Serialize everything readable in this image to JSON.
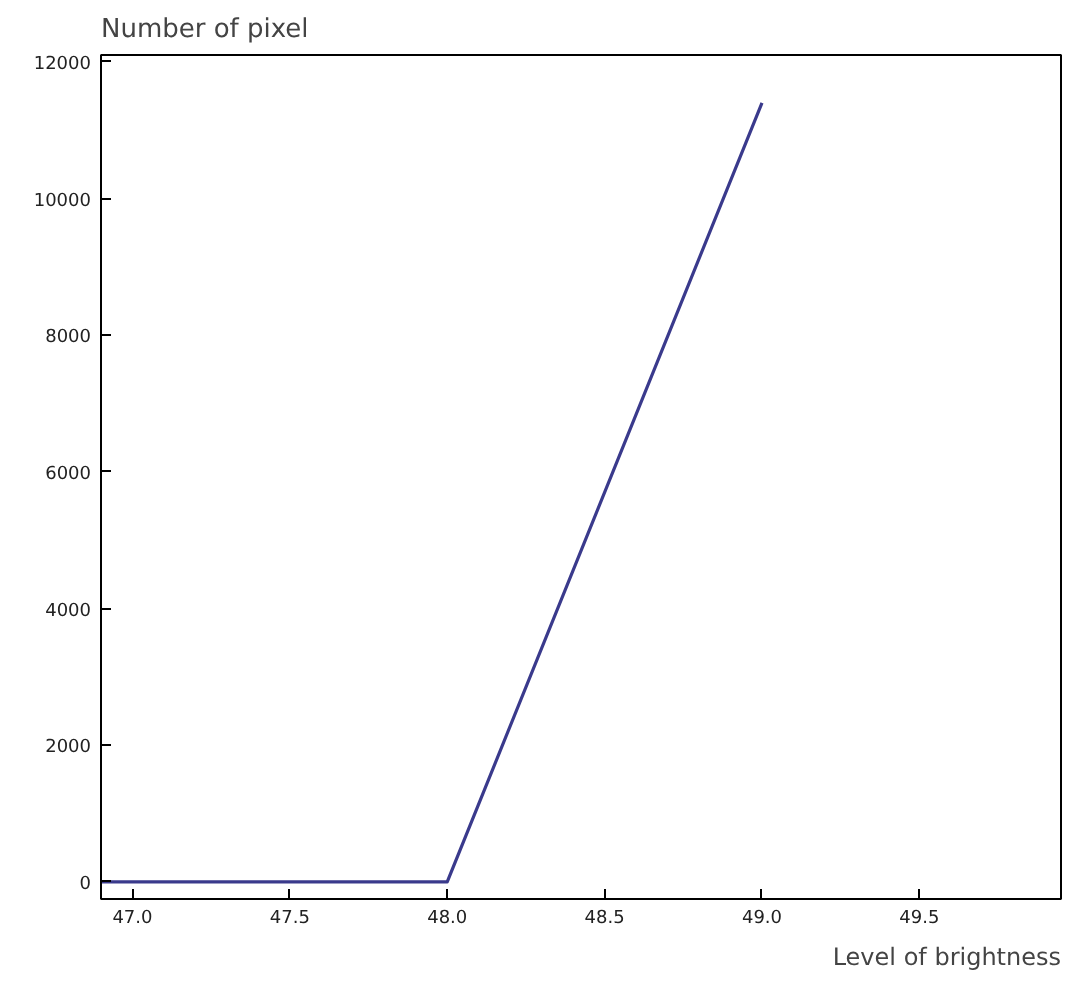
{
  "chart_data": {
    "type": "line",
    "xlabel": "Level of brightness",
    "ylabel": "Number of pixel",
    "x": [
      46.9,
      48.0,
      49.0
    ],
    "series": [
      {
        "color": "#3a3a8c",
        "values": [
          0,
          0,
          11400
        ]
      }
    ],
    "xlim": [
      46.9,
      49.95
    ],
    "ylim": [
      -250,
      12100
    ],
    "xticks": [
      {
        "value": 47,
        "label": "47.0"
      },
      {
        "value": 47.5,
        "label": "47.5"
      },
      {
        "value": 48,
        "label": "48.0"
      },
      {
        "value": 48.5,
        "label": "48.5"
      },
      {
        "value": 49,
        "label": "49.0"
      },
      {
        "value": 49.5,
        "label": "49.5"
      }
    ],
    "yticks": [
      0,
      2000,
      4000,
      6000,
      8000,
      10000,
      12000
    ],
    "grid": false,
    "marker": "none",
    "line_style": "solid"
  }
}
